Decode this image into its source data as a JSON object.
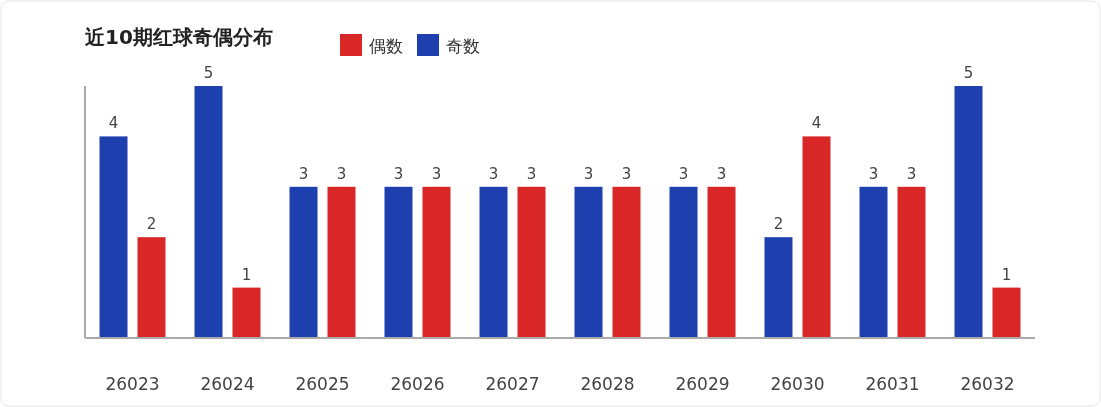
{
  "chart_data": {
    "type": "bar",
    "title": "近10期红球奇偶分布",
    "categories": [
      "26023",
      "26024",
      "26025",
      "26026",
      "26027",
      "26028",
      "26029",
      "26030",
      "26031",
      "26032"
    ],
    "series": [
      {
        "name": "奇数",
        "color": "#1e3fae",
        "values": [
          4,
          5,
          3,
          3,
          3,
          3,
          3,
          2,
          3,
          5
        ]
      },
      {
        "name": "偶数",
        "color": "#d92626",
        "values": [
          2,
          1,
          3,
          3,
          3,
          3,
          3,
          4,
          3,
          1
        ]
      }
    ],
    "ylim": [
      0,
      5
    ],
    "data_labels": true,
    "legend": "top"
  }
}
